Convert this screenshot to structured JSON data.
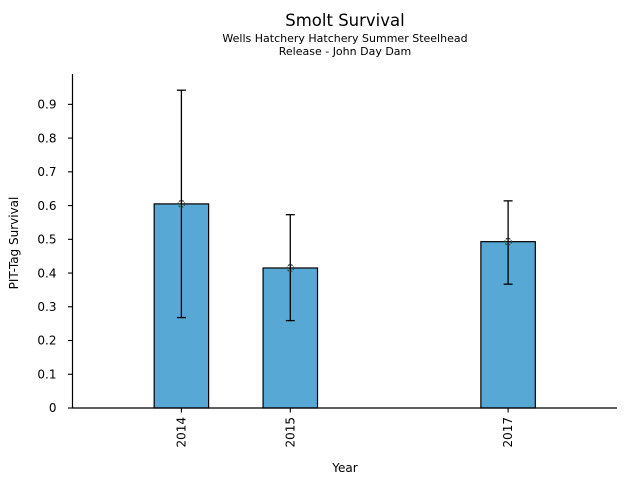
{
  "chart_data": {
    "type": "bar",
    "title": "Smolt Survival",
    "subtitle": [
      "Wells Hatchery Hatchery Summer Steelhead",
      "Release - John Day Dam"
    ],
    "xlabel": "Year",
    "ylabel": "PIT-Tag Survival",
    "categories": [
      "2014",
      "2015",
      "2017"
    ],
    "x": [
      2014,
      2015,
      2017
    ],
    "values": [
      0.605,
      0.415,
      0.493
    ],
    "error_low": [
      0.268,
      0.259,
      0.367
    ],
    "error_high": [
      0.942,
      0.573,
      0.614
    ],
    "xlim": [
      2013,
      2018
    ],
    "ylim": [
      0,
      0.99
    ],
    "ytick_values": [
      0,
      0.1,
      0.2,
      0.3,
      0.4,
      0.5,
      0.6,
      0.7,
      0.8,
      0.9
    ],
    "ytick_labels": [
      "0",
      "0.1",
      "0.2",
      "0.3",
      "0.4",
      "0.5",
      "0.6",
      "0.7",
      "0.8",
      "0.9"
    ],
    "bar_width_years": 0.5,
    "bar_color": "#57a8d5",
    "bar_edge_color": "#000000",
    "error_color": "#000000",
    "marker": "open-circle",
    "marker_color": "#3a3a3a",
    "axis_color": "#000000",
    "background_color": "#ffffff",
    "grid": false,
    "legend": null
  }
}
